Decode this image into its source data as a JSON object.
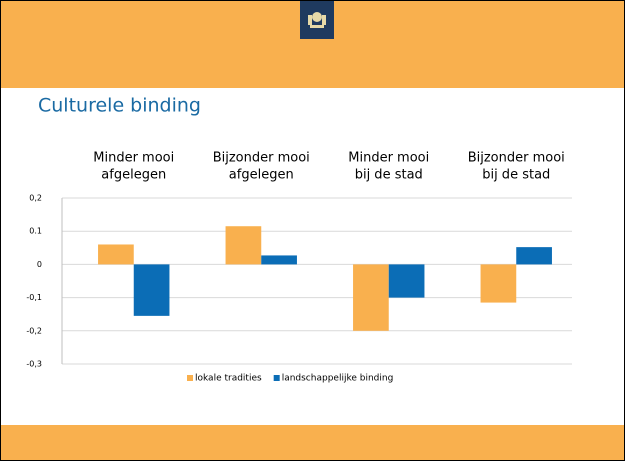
{
  "slide": {
    "title": "Culturele binding"
  },
  "chart_data": {
    "type": "bar",
    "categories": [
      [
        "Minder mooi",
        "afgelegen"
      ],
      [
        "Bijzonder mooi",
        "afgelegen"
      ],
      [
        "Minder mooi",
        "bij de stad"
      ],
      [
        "Bijzonder mooi",
        "bij de stad"
      ]
    ],
    "series": [
      {
        "name": "lokale tradities",
        "color": "#f9b04e",
        "values": [
          0.06,
          0.115,
          -0.2,
          -0.115
        ]
      },
      {
        "name": "landschappelijke binding",
        "color": "#0b6db6",
        "values": [
          -0.155,
          0.027,
          -0.1,
          0.052
        ]
      }
    ],
    "ylim": [
      -0.3,
      0.2
    ],
    "yticks": [
      {
        "value": 0.2,
        "label": "0,2"
      },
      0.1,
      0,
      {
        "value": -0.1,
        "label": "-0,1"
      },
      {
        "value": -0.2,
        "label": "-0,2"
      },
      {
        "value": -0.3,
        "label": "-0,3"
      }
    ],
    "grid": true,
    "legend": "bottom"
  }
}
